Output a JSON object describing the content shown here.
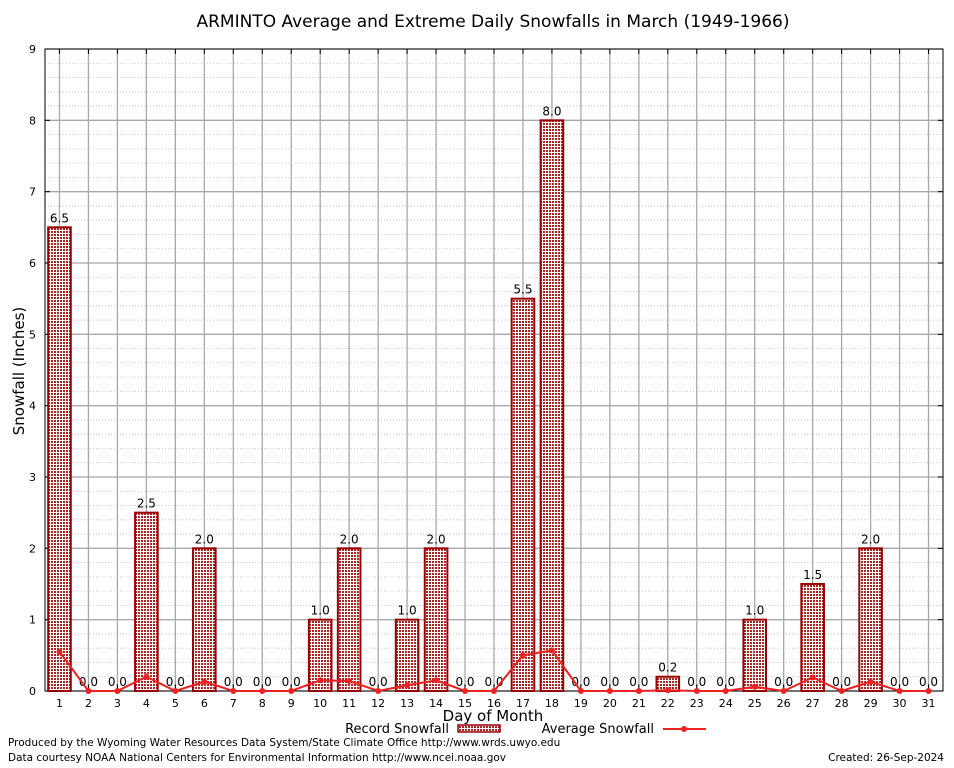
{
  "chart_data": {
    "type": "bar",
    "title": "ARMINTO Average and Extreme Daily Snowfalls in March (1949-1966)",
    "xlabel": "Day of Month",
    "ylabel": "Snowfall (Inches)",
    "ylim": [
      0,
      9
    ],
    "yticks": [
      0,
      1,
      2,
      3,
      4,
      5,
      6,
      7,
      8,
      9
    ],
    "categories": [
      "1",
      "2",
      "3",
      "4",
      "5",
      "6",
      "7",
      "8",
      "9",
      "10",
      "11",
      "12",
      "13",
      "14",
      "15",
      "16",
      "17",
      "18",
      "19",
      "20",
      "21",
      "22",
      "23",
      "24",
      "25",
      "26",
      "27",
      "28",
      "29",
      "30",
      "31"
    ],
    "series": [
      {
        "name": "Record Snowfall",
        "kind": "bar",
        "values": [
          6.5,
          0,
          0,
          2.5,
          0,
          2.0,
          0,
          0,
          0,
          1.0,
          2.0,
          0,
          1.0,
          2.0,
          0,
          0,
          5.5,
          8.0,
          0,
          0,
          0,
          0.2,
          0,
          0,
          1.0,
          0,
          1.5,
          0,
          2.0,
          0,
          0
        ],
        "labels": [
          "6.5",
          "0.0",
          "0.0",
          "2.5",
          "0.0",
          "2.0",
          "0.0",
          "0.0",
          "0.0",
          "1.0",
          "2.0",
          "0.0",
          "1.0",
          "2.0",
          "0.0",
          "0.0",
          "5.5",
          "8.0",
          "0.0",
          "0.0",
          "0.0",
          "0.2",
          "0.0",
          "0.0",
          "1.0",
          "0.0",
          "1.5",
          "0.0",
          "2.0",
          "0.0",
          "0.0"
        ]
      },
      {
        "name": "Average Snowfall",
        "kind": "line",
        "values": [
          0.55,
          0,
          0,
          0.2,
          0,
          0.13,
          0,
          0,
          0,
          0.15,
          0.14,
          0,
          0.08,
          0.15,
          0,
          0,
          0.5,
          0.57,
          0,
          0,
          0,
          0.01,
          0,
          0,
          0.06,
          0,
          0.19,
          0,
          0.13,
          0,
          0
        ]
      }
    ],
    "grid": true,
    "legend": "bottom-center",
    "colors": {
      "bar_stroke": "#990000",
      "bar_fill": "#c9a0a0",
      "line": "#ee2222"
    }
  },
  "footer": {
    "produced_by": "Produced by the Wyoming Water Resources Data System/State Climate Office http://www.wrds.uwyo.edu",
    "data_courtesy": "Data courtesy NOAA National Centers for Environmental Information http://www.ncei.noaa.gov",
    "created": "Created: 26-Sep-2024"
  }
}
